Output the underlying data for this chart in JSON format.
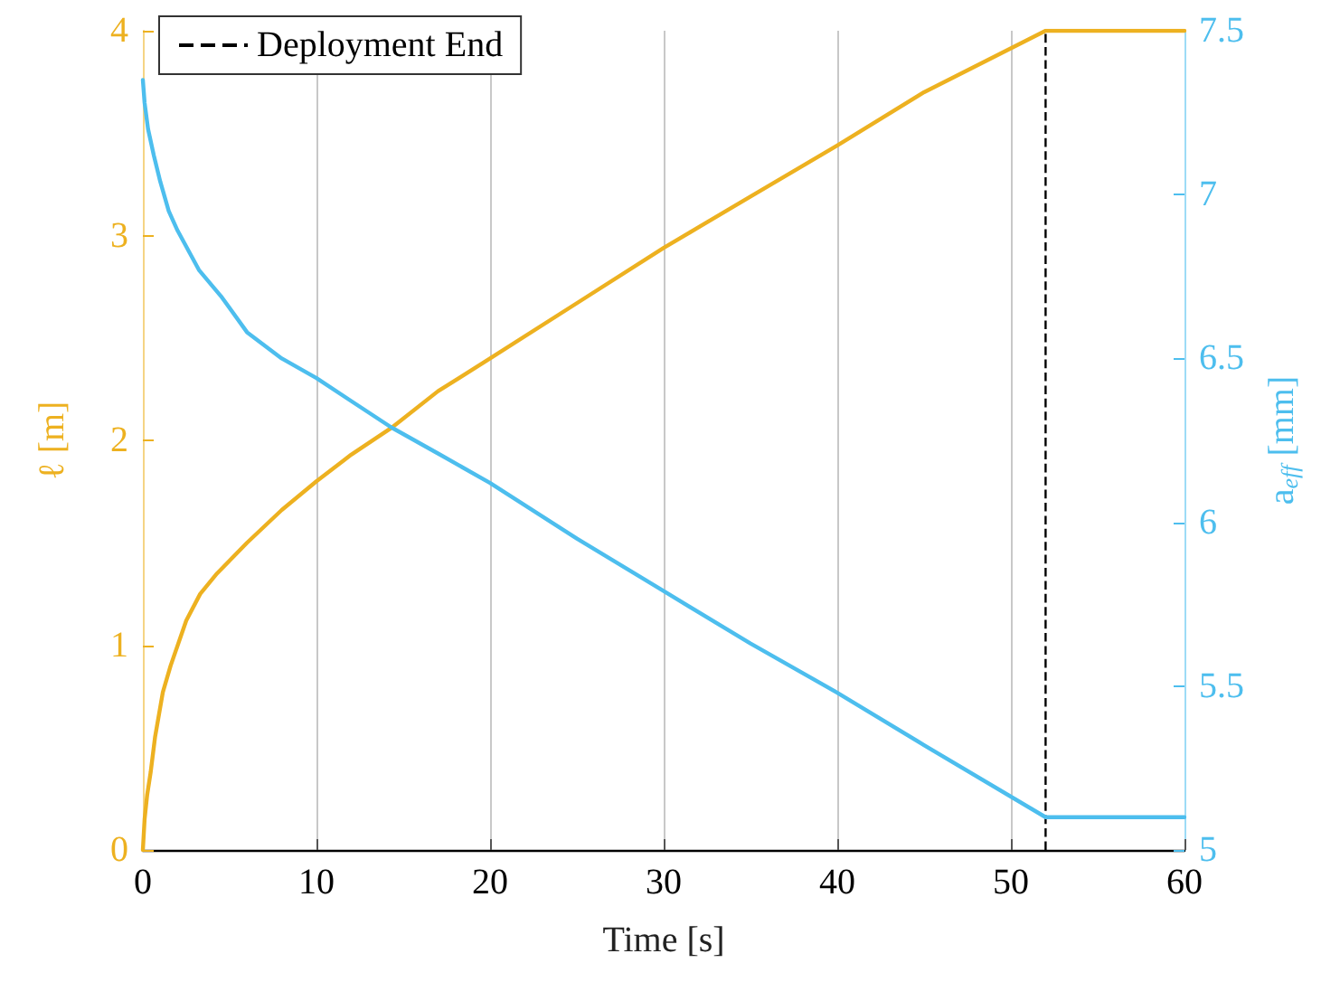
{
  "chart_data": {
    "type": "line",
    "xlabel": "Time [s]",
    "ylabel": "ℓ [m]",
    "y2label": "a$_{eff}$ [mm]",
    "xlim": [
      0,
      60
    ],
    "xticks": [
      0,
      10,
      20,
      30,
      40,
      50,
      60
    ],
    "ylim": [
      0,
      4
    ],
    "yticks": [
      0,
      1,
      2,
      3,
      4
    ],
    "y2lim": [
      5,
      7.5
    ],
    "y2ticks": [
      5,
      5.5,
      6,
      6.5,
      7,
      7.5
    ],
    "grid": "x",
    "legend": "top left",
    "line_style": "solid",
    "marker": "none",
    "series": [
      {
        "color": "#edb120",
        "x": [
          0,
          0.1,
          0.25,
          0.45,
          0.7,
          1.15,
          1.6,
          2.5,
          3.3,
          4.27,
          6,
          8,
          10,
          12,
          14.3,
          17,
          20,
          25,
          30,
          35,
          40,
          45,
          52,
          60
        ],
        "values": [
          0,
          0.15,
          0.27,
          0.38,
          0.55,
          0.77,
          0.9,
          1.12,
          1.25,
          1.35,
          1.5,
          1.66,
          1.8,
          1.93,
          2.06,
          2.24,
          2.4,
          2.67,
          2.94,
          3.19,
          3.44,
          3.7,
          4,
          4
        ]
      },
      {
        "color": "#4dbeee",
        "axis": "y2",
        "x": [
          0,
          0.1,
          0.3,
          0.63,
          1,
          1.49,
          2,
          3.23,
          4.5,
          6,
          8,
          10,
          12,
          14.3,
          17,
          20,
          25,
          30,
          35,
          40,
          45,
          52,
          60
        ],
        "values": [
          7.35,
          7.28,
          7.2,
          7.12,
          7.04,
          6.95,
          6.89,
          6.77,
          6.69,
          6.58,
          6.5,
          6.44,
          6.37,
          6.29,
          6.21,
          6.12,
          5.95,
          5.79,
          5.63,
          5.48,
          5.32,
          5.1,
          5.1
        ]
      }
    ],
    "ref_lines": [
      {
        "axis": "x",
        "value": 52,
        "label": "Deployment End",
        "color": "#000000",
        "line_style": "dashed"
      }
    ]
  }
}
